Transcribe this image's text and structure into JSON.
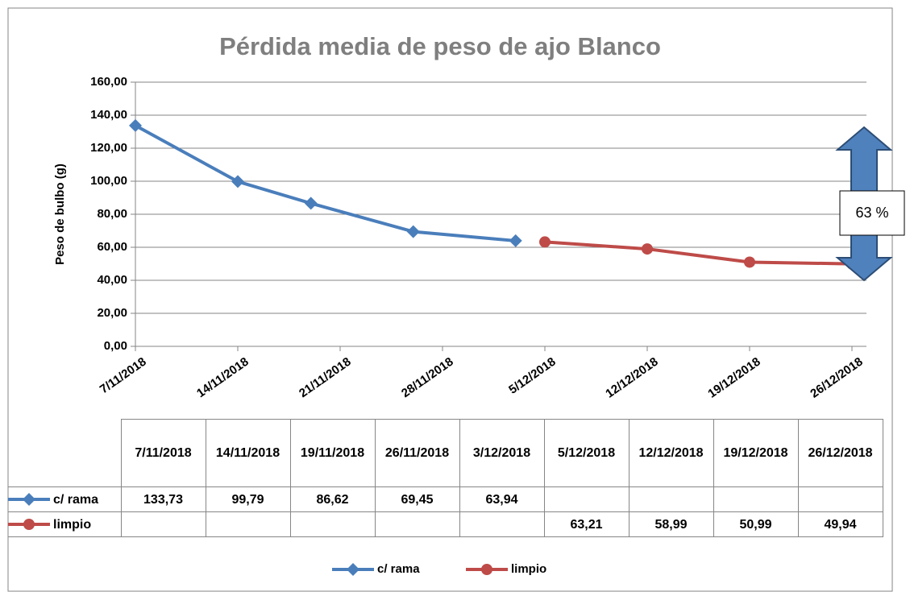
{
  "chart_data": {
    "type": "line",
    "title": "Pérdida media de peso de ajo Blanco",
    "y_label": "Peso de bulbo (g)",
    "x": [
      "7/11/2018",
      "14/11/2018",
      "19/11/2018",
      "26/11/2018",
      "3/12/2018",
      "5/12/2018",
      "12/12/2018",
      "19/12/2018",
      "26/12/2018"
    ],
    "series": [
      {
        "name": "c/ rama",
        "color": "#4a7ebb",
        "marker": "diamond",
        "values": [
          133.73,
          99.79,
          86.62,
          69.45,
          63.94,
          null,
          null,
          null,
          null
        ],
        "value_labels": [
          "133,73",
          "99,79",
          "86,62",
          "69,45",
          "63,94",
          null,
          null,
          null,
          null
        ]
      },
      {
        "name": "limpio",
        "color": "#be4b48",
        "marker": "circle",
        "values": [
          null,
          null,
          null,
          null,
          null,
          63.21,
          58.99,
          50.99,
          49.94
        ],
        "value_labels": [
          null,
          null,
          null,
          null,
          null,
          "63,21",
          "58,99",
          "50,99",
          "49,94"
        ]
      }
    ],
    "xlim": [
      "7/11/2018",
      "26/12/2018"
    ],
    "xticks": [
      "7/11/2018",
      "14/11/2018",
      "21/11/2018",
      "28/11/2018",
      "5/12/2018",
      "12/12/2018",
      "19/12/2018",
      "26/12/2018"
    ],
    "ylim": [
      0,
      160
    ],
    "yticks": [
      {
        "value": 0,
        "label": "0,00"
      },
      {
        "value": 20,
        "label": "20,00"
      },
      {
        "value": 40,
        "label": "40,00"
      },
      {
        "value": 60,
        "label": "60,00"
      },
      {
        "value": 80,
        "label": "80,00"
      },
      {
        "value": 100,
        "label": "100,00"
      },
      {
        "value": 120,
        "label": "120,00"
      },
      {
        "value": 140,
        "label": "140,00"
      },
      {
        "value": 160,
        "label": "160,00"
      }
    ],
    "grid": true,
    "legend": "bottom",
    "annotation": "63 %"
  }
}
